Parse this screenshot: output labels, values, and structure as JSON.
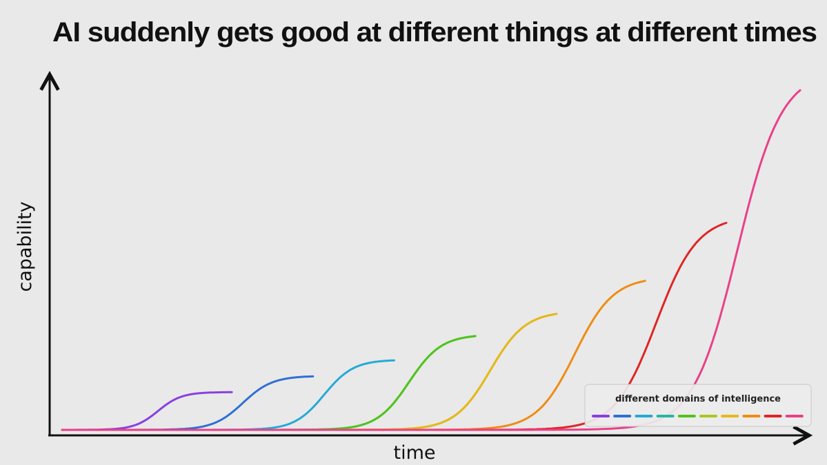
{
  "chart_data": {
    "type": "line",
    "title": "AI suddenly gets good at different things at different times",
    "xlabel": "time",
    "ylabel": "capability",
    "xlim": [
      0,
      100
    ],
    "ylim": [
      0,
      100
    ],
    "grid": false,
    "axis_ticks": false,
    "legend": {
      "title": "different domains of intelligence",
      "placement": "bottom-right"
    },
    "series": [
      {
        "color": "#8a3fe0",
        "rise_at": 13,
        "plateau": 10.5,
        "width": 1.6,
        "end_x": 23
      },
      {
        "color": "#2f6fd6",
        "rise_at": 24.5,
        "plateau": 15,
        "width": 2.0,
        "end_x": 34
      },
      {
        "color": "#25aad6",
        "rise_at": 35.5,
        "plateau": 19.5,
        "width": 2.0,
        "end_x": 45
      },
      {
        "color": "#24b8a0",
        "rise_at": 47,
        "plateau": 26.5,
        "width": 2.2,
        "end_x": 56
      },
      {
        "color": "#52c41a",
        "rise_at": 47,
        "plateau": 26.5,
        "width": 2.2,
        "end_x": 56
      },
      {
        "color": "#a8c820",
        "rise_at": 58,
        "plateau": 33,
        "width": 2.4,
        "end_x": 67
      },
      {
        "color": "#e6b81a",
        "rise_at": 58,
        "plateau": 33,
        "width": 2.4,
        "end_x": 67
      },
      {
        "color": "#ef8c12",
        "rise_at": 69.5,
        "plateau": 42.5,
        "width": 2.6,
        "end_x": 79
      },
      {
        "color": "#e02424",
        "rise_at": 80.5,
        "plateau": 59.5,
        "width": 2.8,
        "end_x": 90
      },
      {
        "color": "#ea3f88",
        "rise_at": 91.5,
        "plateau": 100,
        "width": 3.0,
        "end_x": 100
      }
    ]
  }
}
